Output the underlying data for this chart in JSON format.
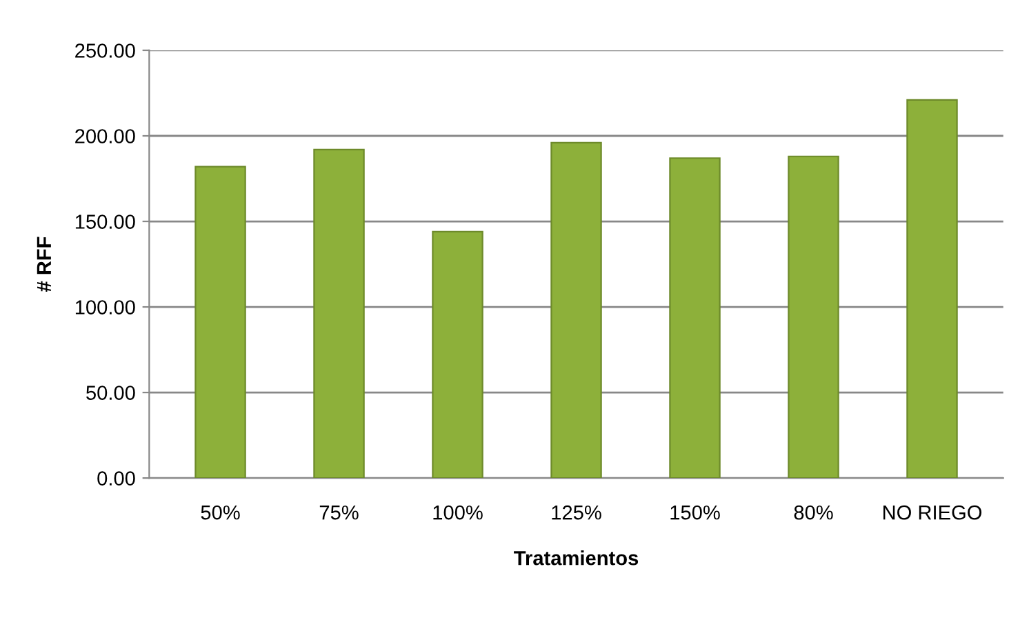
{
  "chart_data": {
    "type": "bar",
    "xlabel": "Tratamientos",
    "ylabel": "# RFF",
    "categories": [
      "50%",
      "75%",
      "100%",
      "125%",
      "150%",
      "80%",
      "NO RIEGO"
    ],
    "values": [
      182,
      192,
      144,
      196,
      187,
      188,
      221
    ],
    "color": "#8db03a",
    "ylim": [
      0,
      250
    ],
    "yticks": [
      {
        "value": 0,
        "label": "0.00"
      },
      {
        "value": 50,
        "label": "50.00"
      },
      {
        "value": 100,
        "label": "100.00"
      },
      {
        "value": 150,
        "label": "150.00"
      },
      {
        "value": 200,
        "label": "200.00"
      },
      {
        "value": 250,
        "label": "250.00"
      }
    ],
    "grid": "y",
    "legend": false
  }
}
